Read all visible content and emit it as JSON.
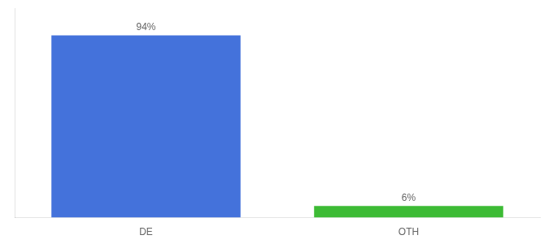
{
  "chart_data": {
    "type": "bar",
    "categories": [
      "DE",
      "OTH"
    ],
    "values": [
      94,
      6
    ],
    "value_labels": [
      "94%",
      "6%"
    ],
    "data_labels": true,
    "colors": [
      "#4472db",
      "#3dbb35"
    ],
    "ylim": [
      0,
      108
    ],
    "tick_labels": "x",
    "grid": false
  }
}
